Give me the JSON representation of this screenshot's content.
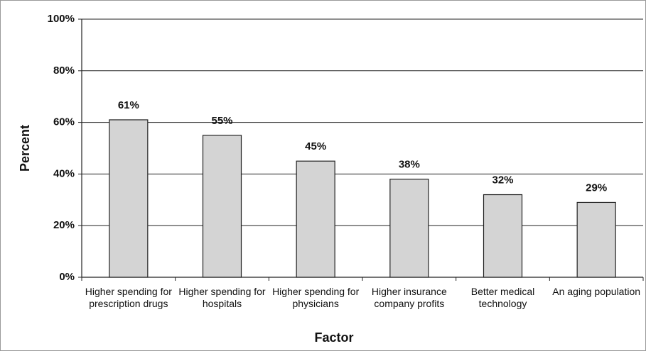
{
  "chart_data": {
    "type": "bar",
    "categories": [
      "Higher spending for prescription drugs",
      "Higher spending for hospitals",
      "Higher spending for physicians",
      "Higher insurance company profits",
      "Better medical technology",
      "An aging population"
    ],
    "values": [
      61,
      55,
      45,
      38,
      32,
      29
    ],
    "value_labels": [
      "61%",
      "55%",
      "45%",
      "38%",
      "32%",
      "29%"
    ],
    "color": "#d4d4d4",
    "xlabel": "Factor",
    "ylabel": "Percent",
    "ylim": [
      0,
      100
    ],
    "yticks": [
      {
        "value": 0,
        "label": "0%"
      },
      {
        "value": 20,
        "label": "20%"
      },
      {
        "value": 40,
        "label": "40%"
      },
      {
        "value": 60,
        "label": "60%"
      },
      {
        "value": 80,
        "label": "80%"
      },
      {
        "value": 100,
        "label": "100%"
      }
    ],
    "grid": true
  }
}
